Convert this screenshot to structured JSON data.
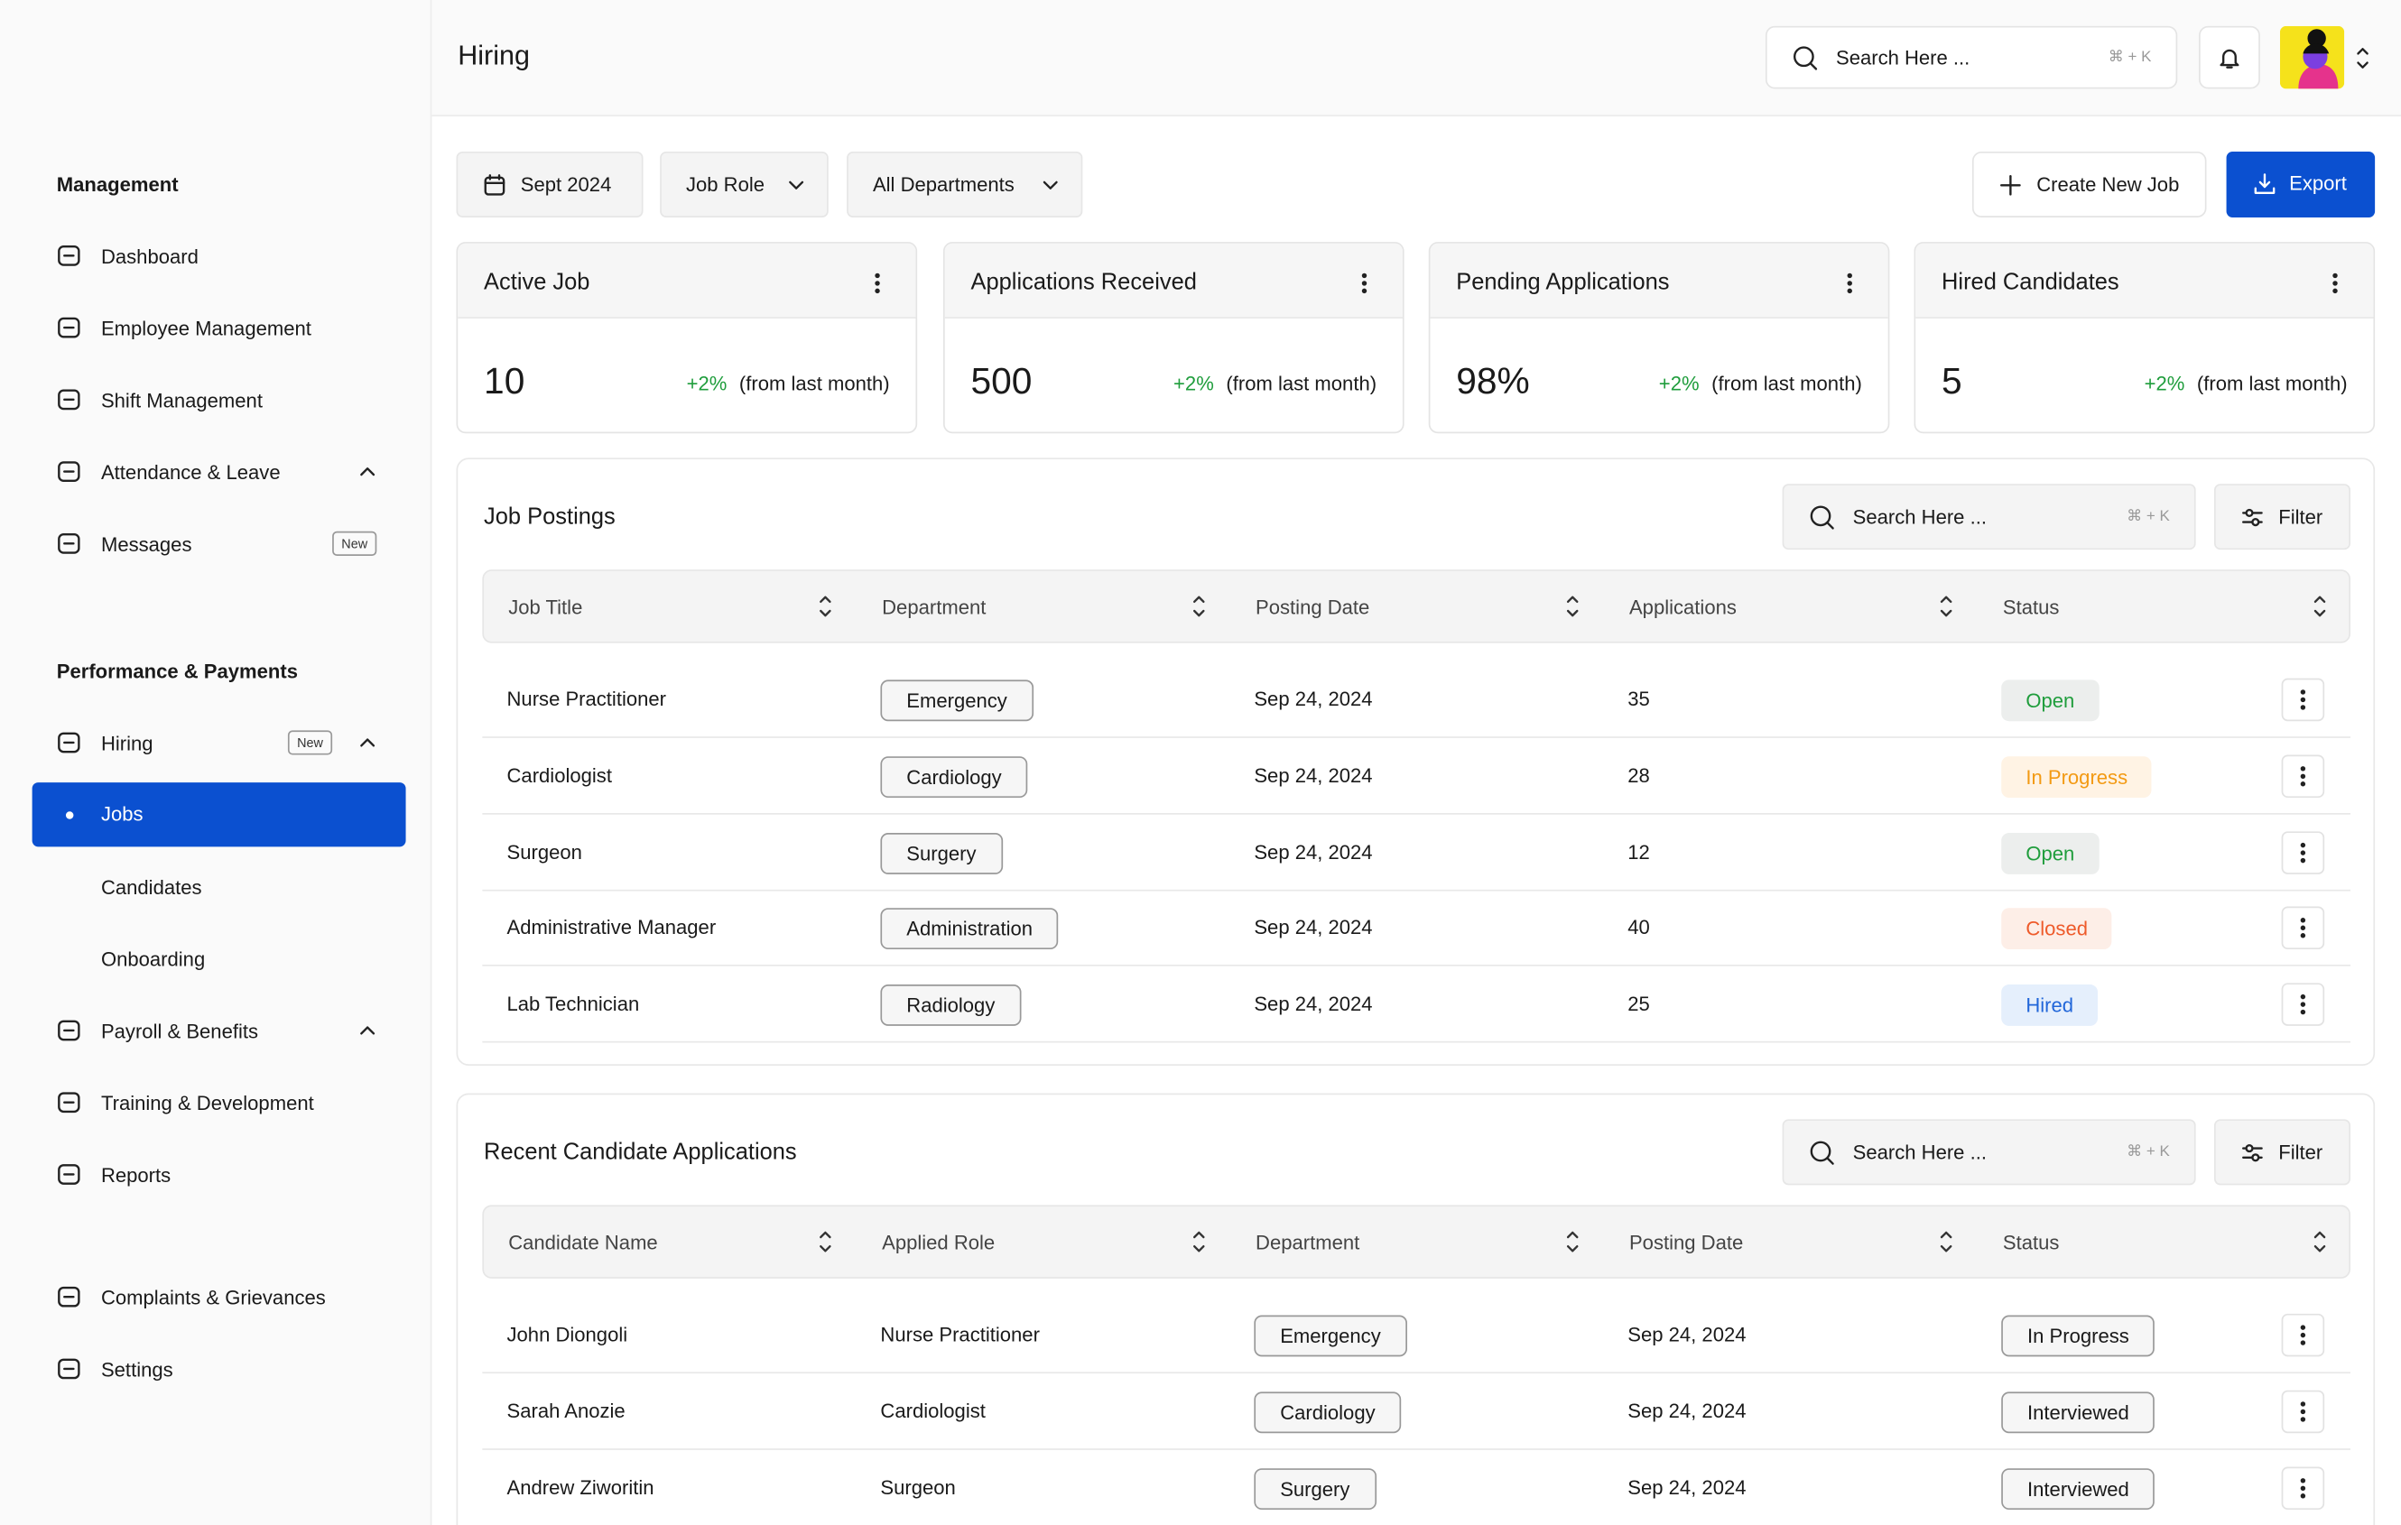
{
  "header": {
    "title": "Hiring",
    "search": "Search Here ...",
    "shortcut": "⌘ + K"
  },
  "sidebar": {
    "sections": [
      {
        "title": "Management",
        "items": [
          {
            "label": "Dashboard"
          },
          {
            "label": "Employee Management"
          },
          {
            "label": "Shift Management"
          },
          {
            "label": "Attendance & Leave",
            "expandable": true
          },
          {
            "label": "Messages",
            "badge": "New"
          }
        ]
      },
      {
        "title": "Performance & Payments",
        "items": [
          {
            "label": "Hiring",
            "badge": "New",
            "expandable": true
          },
          {
            "label": "Jobs",
            "sub": true,
            "active": true
          },
          {
            "label": "Candidates",
            "sub": true
          },
          {
            "label": "Onboarding",
            "sub": true
          },
          {
            "label": "Payroll & Benefits",
            "expandable": true
          },
          {
            "label": "Training & Development"
          },
          {
            "label": "Reports"
          }
        ]
      },
      {
        "items": [
          {
            "label": "Complaints & Grievances"
          },
          {
            "label": "Settings"
          }
        ]
      }
    ]
  },
  "toolbar": {
    "filters": [
      "Sept 2024",
      "Job Role",
      "All Departments"
    ],
    "create": "Create New Job",
    "export": "Export"
  },
  "stats": [
    {
      "title": "Active Job",
      "value": "10",
      "change": "+2%",
      "note": "(from last month)"
    },
    {
      "title": "Applications Received",
      "value": "500",
      "change": "+2%",
      "note": "(from last month)"
    },
    {
      "title": "Pending Applications",
      "value": "98%",
      "change": "+2%",
      "note": "(from last month)"
    },
    {
      "title": "Hired Candidates",
      "value": "5",
      "change": "+2%",
      "note": "(from last month)"
    }
  ],
  "status_colors": {
    "Open": {
      "bg": "#eceeed",
      "fg": "#1f9d3c"
    },
    "In Progress": {
      "bg": "#fff3e4",
      "fg": "#f39a13"
    },
    "Closed": {
      "bg": "#fdeee7",
      "fg": "#ee5a2a"
    },
    "Hired": {
      "bg": "#e5effc",
      "fg": "#2166d9"
    }
  },
  "tables": [
    {
      "title": "Job Postings",
      "search": "Search Here ...",
      "shortcut": "⌘ + K",
      "filter": "Filter",
      "pill_column": 1,
      "status_column": 4,
      "status_style": "filled",
      "columns": [
        "Job Title",
        "Department",
        "Posting Date",
        "Applications",
        "Status"
      ],
      "rows": [
        [
          "Nurse Practitioner",
          "Emergency",
          "Sep 24, 2024",
          35,
          "Open"
        ],
        [
          "Cardiologist",
          "Cardiology",
          "Sep 24, 2024",
          28,
          "In Progress"
        ],
        [
          "Surgeon",
          "Surgery",
          "Sep 24, 2024",
          12,
          "Open"
        ],
        [
          "Administrative Manager",
          "Administration",
          "Sep 24, 2024",
          40,
          "Closed"
        ],
        [
          "Lab Technician",
          "Radiology",
          "Sep 24, 2024",
          25,
          "Hired"
        ]
      ]
    },
    {
      "title": "Recent Candidate Applications",
      "search": "Search Here ...",
      "shortcut": "⌘ + K",
      "filter": "Filter",
      "pill_column": 2,
      "status_column": 4,
      "status_style": "outlined",
      "columns": [
        "Candidate Name",
        "Applied Role",
        "Department",
        "Posting Date",
        "Status"
      ],
      "rows": [
        [
          "John Diongoli",
          "Nurse Practitioner",
          "Emergency",
          "Sep 24, 2024",
          "In Progress"
        ],
        [
          "Sarah Anozie",
          "Cardiologist",
          "Cardiology",
          "Sep 24, 2024",
          "Interviewed"
        ],
        [
          "Andrew Ziworitin",
          "Surgeon",
          "Surgery",
          "Sep 24, 2024",
          "Interviewed"
        ]
      ]
    }
  ]
}
